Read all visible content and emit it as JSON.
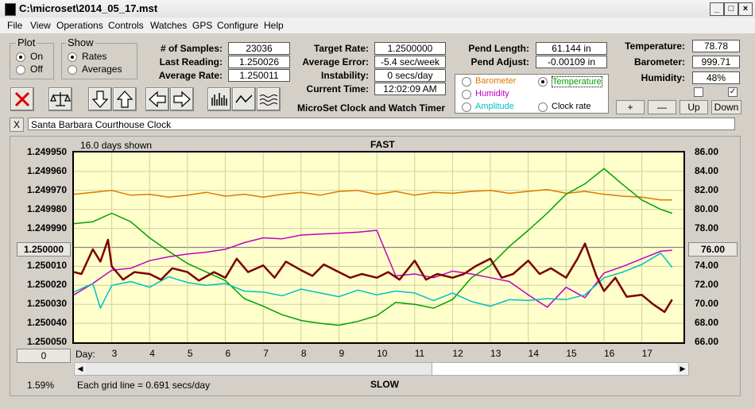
{
  "window": {
    "title": "C:\\microset\\2014_05_17.mst"
  },
  "menu": [
    "File",
    "View",
    "Operations",
    "Controls",
    "Watches",
    "GPS",
    "Configure",
    "Help"
  ],
  "plot_group": {
    "title": "Plot",
    "on": "On",
    "off": "Off"
  },
  "show_group": {
    "title": "Show",
    "rates": "Rates",
    "averages": "Averages"
  },
  "stats": {
    "samples_label": "# of Samples:",
    "samples": "23036",
    "last_label": "Last Reading:",
    "last": "1.250026",
    "avg_label": "Average Rate:",
    "avg": "1.250011",
    "target_label": "Target Rate:",
    "target": "1.2500000",
    "avgerr_label": "Average Error:",
    "avgerr": "-5.4 sec/week",
    "instab_label": "Instability:",
    "instab": "0 secs/day",
    "time_label": "Current Time:",
    "time": "12:02:09 AM",
    "pendlen_label": "Pend Length:",
    "pendlen": "61.144 in",
    "pendadj_label": "Pend Adjust:",
    "pendadj": "-0.00109 in",
    "temp_label": "Temperature:",
    "temp": "78.78",
    "baro_label": "Barometer:",
    "baro": "999.71",
    "hum_label": "Humidity:",
    "hum": "48%"
  },
  "app_name": "MicroSet Clock and Watch Timer",
  "sensor_select": {
    "barometer": "Barometer",
    "temperature": "Temperature",
    "humidity": "Humidity",
    "amplitude": "Amplitude",
    "clockrate": "Clock rate",
    "colors": {
      "barometer": "#e07800",
      "temperature": "#00a000",
      "humidity": "#c000c0",
      "amplitude": "#00c0c0",
      "clockrate": "#000000"
    }
  },
  "scale_buttons": {
    "plus": "+",
    "minus": "—",
    "up": "Up",
    "down": "Down"
  },
  "clock_name": "Santa Barbara Courthouse Clock",
  "close_x": "X",
  "chart_header": {
    "days_shown": "16.0 days shown",
    "fast": "FAST",
    "slow": "SLOW",
    "day_label": "Day:",
    "grid_note": "Each grid line = 0.691 secs/day",
    "percent": "1.59%",
    "left_center_btn": "1.250000",
    "right_center_btn": "76.00",
    "zero_btn": "0"
  },
  "chart_data": {
    "type": "line",
    "x_ticks": [
      "3",
      "4",
      "5",
      "6",
      "7",
      "8",
      "9",
      "10",
      "11",
      "12",
      "13",
      "14",
      "15",
      "16",
      "17"
    ],
    "y_left_ticks": [
      "1.249950",
      "1.249960",
      "1.249970",
      "1.249980",
      "1.249990",
      "",
      "1.250010",
      "1.250020",
      "1.250030",
      "1.250040",
      "1.250050"
    ],
    "y_right_ticks": [
      "86.00",
      "84.00",
      "82.00",
      "80.00",
      "78.00",
      "",
      "74.00",
      "72.00",
      "70.00",
      "68.00",
      "66.00"
    ],
    "xlim": [
      2,
      18.1
    ],
    "series": [
      {
        "name": "Barometer",
        "color": "#e07800",
        "width": 1.5,
        "x": [
          2.0,
          2.5,
          3.0,
          3.5,
          4.0,
          4.5,
          5.0,
          5.5,
          6.0,
          6.5,
          7.0,
          7.5,
          8.0,
          8.5,
          9.0,
          9.5,
          10.0,
          10.5,
          11.0,
          11.5,
          12.0,
          12.5,
          13.0,
          13.5,
          14.0,
          14.5,
          15.0,
          15.5,
          16.0,
          16.5,
          17.0,
          17.5,
          17.8
        ],
        "y": [
          81.6,
          81.8,
          82.0,
          81.5,
          81.6,
          81.3,
          81.5,
          81.8,
          81.4,
          81.6,
          81.3,
          81.6,
          81.8,
          81.5,
          81.9,
          82.0,
          81.6,
          81.9,
          81.5,
          81.8,
          81.7,
          81.9,
          82.0,
          81.7,
          81.9,
          82.1,
          81.7,
          81.9,
          81.6,
          81.4,
          81.3,
          81.0,
          81.0
        ]
      },
      {
        "name": "Temperature",
        "color": "#00a000",
        "width": 1.5,
        "x": [
          2.0,
          2.5,
          3.0,
          3.5,
          4.0,
          4.5,
          5.0,
          5.5,
          6.0,
          6.5,
          7.0,
          7.5,
          8.0,
          8.5,
          9.0,
          9.5,
          10.0,
          10.5,
          11.0,
          11.5,
          12.0,
          12.5,
          13.0,
          13.5,
          14.0,
          14.5,
          15.0,
          15.5,
          16.0,
          16.5,
          17.0,
          17.5,
          17.8
        ],
        "y": [
          78.5,
          78.7,
          79.6,
          78.7,
          77.0,
          75.6,
          74.3,
          73.4,
          72.5,
          70.6,
          69.8,
          68.9,
          68.3,
          68.0,
          67.8,
          68.2,
          68.8,
          70.2,
          70.0,
          69.6,
          70.5,
          72.8,
          74.1,
          76.1,
          77.8,
          79.6,
          81.6,
          82.7,
          84.3,
          82.6,
          81.0,
          80.0,
          79.6
        ]
      },
      {
        "name": "Humidity",
        "color": "#c000c0",
        "width": 1.5,
        "x": [
          2.0,
          2.5,
          3.0,
          3.5,
          4.0,
          4.5,
          5.0,
          5.5,
          6.0,
          6.5,
          7.0,
          7.5,
          8.0,
          8.5,
          9.0,
          9.5,
          10.0,
          10.5,
          11.0,
          11.5,
          12.0,
          12.5,
          13.0,
          13.5,
          14.0,
          14.5,
          15.0,
          15.5,
          16.0,
          16.5,
          17.0,
          17.5,
          17.8
        ],
        "y": [
          71.0,
          72.2,
          73.6,
          73.8,
          74.6,
          75.0,
          75.3,
          75.5,
          75.8,
          76.5,
          77.0,
          76.9,
          77.3,
          77.4,
          77.5,
          77.6,
          77.8,
          73.0,
          73.2,
          72.8,
          73.5,
          73.2,
          72.8,
          72.4,
          71.0,
          69.7,
          71.8,
          70.7,
          73.3,
          74.0,
          74.8,
          75.6,
          75.7
        ]
      },
      {
        "name": "Amplitude",
        "color": "#00c0c0",
        "width": 1.5,
        "x": [
          2.0,
          2.5,
          2.7,
          3.0,
          3.5,
          4.0,
          4.5,
          5.0,
          5.5,
          6.0,
          6.5,
          7.0,
          7.5,
          8.0,
          8.5,
          9.0,
          9.5,
          10.0,
          10.5,
          11.0,
          11.5,
          12.0,
          12.5,
          13.0,
          13.5,
          14.0,
          14.5,
          15.0,
          15.5,
          16.0,
          16.5,
          17.0,
          17.5,
          17.8
        ],
        "y": [
          71.3,
          72.2,
          69.6,
          72.0,
          72.4,
          71.8,
          72.9,
          72.3,
          72.0,
          72.2,
          71.4,
          71.3,
          70.9,
          71.6,
          71.2,
          70.8,
          71.5,
          71.0,
          71.4,
          71.2,
          70.4,
          71.2,
          70.3,
          69.8,
          70.5,
          70.4,
          70.6,
          70.5,
          71.0,
          72.8,
          73.4,
          74.2,
          75.4,
          73.9
        ]
      },
      {
        "name": "Clock rate",
        "color": "#7a0000",
        "width": 2.5,
        "x": [
          2.0,
          2.2,
          2.5,
          2.7,
          2.9,
          3.0,
          3.3,
          3.6,
          4.0,
          4.3,
          4.6,
          5.0,
          5.3,
          5.7,
          6.0,
          6.3,
          6.6,
          7.0,
          7.3,
          7.6,
          8.0,
          8.3,
          8.6,
          9.0,
          9.3,
          9.6,
          10.0,
          10.3,
          10.6,
          11.0,
          11.3,
          11.6,
          12.0,
          12.3,
          12.6,
          13.0,
          13.3,
          13.6,
          14.0,
          14.3,
          14.6,
          15.0,
          15.3,
          15.5,
          15.8,
          16.0,
          16.3,
          16.6,
          17.0,
          17.3,
          17.6,
          17.8
        ],
        "y": [
          73.4,
          73.2,
          75.8,
          74.5,
          76.8,
          74.0,
          72.6,
          73.4,
          73.2,
          72.6,
          73.8,
          73.4,
          72.5,
          73.4,
          72.8,
          74.8,
          73.4,
          74.1,
          72.8,
          74.5,
          73.6,
          73.0,
          74.2,
          73.4,
          72.8,
          73.2,
          72.8,
          73.4,
          72.6,
          74.6,
          72.6,
          73.2,
          72.8,
          73.2,
          74.0,
          74.8,
          72.8,
          73.2,
          74.6,
          73.2,
          73.8,
          72.8,
          74.8,
          76.4,
          73.0,
          71.4,
          72.8,
          70.8,
          71.0,
          70.0,
          69.2,
          70.5
        ]
      }
    ],
    "right_ylim": [
      66,
      86
    ],
    "grid": true
  }
}
